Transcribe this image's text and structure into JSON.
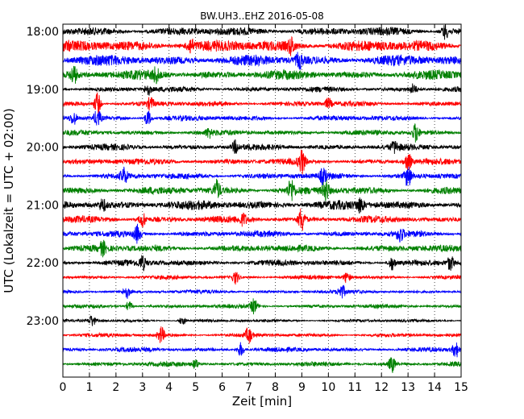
{
  "chart_data": {
    "type": "line",
    "title": "BW.UH3..EHZ 2016-05-08",
    "xlabel": "Zeit  [min]",
    "ylabel": "UTC (Lokalzeit = UTC + 02:00)",
    "xlim": [
      0,
      15
    ],
    "x_ticks": [
      0,
      1,
      2,
      3,
      4,
      5,
      6,
      7,
      8,
      9,
      10,
      11,
      12,
      13,
      14,
      15
    ],
    "x_tick_labels": [
      "0",
      "1",
      "2",
      "3",
      "4",
      "5",
      "6",
      "7",
      "8",
      "9",
      "10",
      "11",
      "12",
      "13",
      "14",
      "15"
    ],
    "y_tick_labels": [
      "18:00",
      "19:00",
      "20:00",
      "21:00",
      "22:00",
      "23:00"
    ],
    "grid": "vertical-dotted",
    "line_colors": [
      "#000000",
      "#ff0000",
      "#0000ff",
      "#008000"
    ],
    "traces": [
      {
        "start": "18:00",
        "color": "#000000",
        "amp": 0.55,
        "events": [
          [
            14.4,
            1.0
          ]
        ]
      },
      {
        "start": "18:15",
        "color": "#ff0000",
        "amp": 0.75,
        "events": [
          [
            4.8,
            1.0
          ],
          [
            8.6,
            1.0
          ]
        ]
      },
      {
        "start": "18:30",
        "color": "#0000ff",
        "amp": 0.7,
        "events": [
          [
            8.9,
            1.0
          ]
        ]
      },
      {
        "start": "18:45",
        "color": "#008000",
        "amp": 0.6,
        "events": [
          [
            0.4,
            1.2
          ],
          [
            3.5,
            0.9
          ]
        ]
      },
      {
        "start": "19:00",
        "color": "#000000",
        "amp": 0.35,
        "events": [
          [
            3.2,
            0.8
          ],
          [
            13.2,
            0.7
          ]
        ]
      },
      {
        "start": "19:15",
        "color": "#ff0000",
        "amp": 0.35,
        "events": [
          [
            1.3,
            1.6
          ],
          [
            3.3,
            0.8
          ],
          [
            10.0,
            0.7
          ]
        ]
      },
      {
        "start": "19:30",
        "color": "#0000ff",
        "amp": 0.35,
        "events": [
          [
            0.4,
            0.9
          ],
          [
            1.3,
            1.2
          ],
          [
            3.2,
            1.1
          ]
        ]
      },
      {
        "start": "19:45",
        "color": "#008000",
        "amp": 0.35,
        "events": [
          [
            13.3,
            1.4
          ],
          [
            5.5,
            0.6
          ]
        ]
      },
      {
        "start": "20:00",
        "color": "#000000",
        "amp": 0.4,
        "events": [
          [
            6.5,
            0.8
          ],
          [
            12.5,
            0.7
          ]
        ]
      },
      {
        "start": "20:15",
        "color": "#ff0000",
        "amp": 0.4,
        "events": [
          [
            9.0,
            1.6
          ],
          [
            13.0,
            1.3
          ]
        ]
      },
      {
        "start": "20:30",
        "color": "#0000ff",
        "amp": 0.4,
        "events": [
          [
            2.3,
            1.1
          ],
          [
            9.8,
            1.0
          ],
          [
            13.0,
            1.5
          ]
        ]
      },
      {
        "start": "20:45",
        "color": "#008000",
        "amp": 0.5,
        "events": [
          [
            5.8,
            1.3
          ],
          [
            8.6,
            1.5
          ],
          [
            9.9,
            1.5
          ]
        ]
      },
      {
        "start": "21:00",
        "color": "#000000",
        "amp": 0.6,
        "events": [
          [
            11.2,
            0.9
          ],
          [
            1.5,
            0.8
          ]
        ]
      },
      {
        "start": "21:15",
        "color": "#ff0000",
        "amp": 0.45,
        "events": [
          [
            3.0,
            1.0
          ],
          [
            9.0,
            1.7
          ],
          [
            6.8,
            0.7
          ]
        ]
      },
      {
        "start": "21:30",
        "color": "#0000ff",
        "amp": 0.4,
        "events": [
          [
            2.8,
            1.2
          ],
          [
            12.7,
            1.0
          ]
        ]
      },
      {
        "start": "21:45",
        "color": "#008000",
        "amp": 0.45,
        "events": [
          [
            1.5,
            0.9
          ]
        ]
      },
      {
        "start": "22:00",
        "color": "#000000",
        "amp": 0.4,
        "events": [
          [
            3.0,
            0.9
          ],
          [
            12.4,
            1.0
          ],
          [
            14.6,
            1.0
          ]
        ]
      },
      {
        "start": "22:15",
        "color": "#ff0000",
        "amp": 0.25,
        "events": [
          [
            6.5,
            0.9
          ],
          [
            10.7,
            0.8
          ]
        ]
      },
      {
        "start": "22:30",
        "color": "#0000ff",
        "amp": 0.25,
        "events": [
          [
            2.4,
            0.9
          ],
          [
            10.5,
            0.9
          ]
        ]
      },
      {
        "start": "22:45",
        "color": "#008000",
        "amp": 0.25,
        "events": [
          [
            7.2,
            1.1
          ],
          [
            2.5,
            0.7
          ]
        ]
      },
      {
        "start": "23:00",
        "color": "#000000",
        "amp": 0.2,
        "events": [
          [
            1.1,
            0.8
          ],
          [
            4.5,
            0.6
          ]
        ]
      },
      {
        "start": "23:15",
        "color": "#ff0000",
        "amp": 0.25,
        "events": [
          [
            3.7,
            1.2
          ],
          [
            7.0,
            1.1
          ]
        ]
      },
      {
        "start": "23:30",
        "color": "#0000ff",
        "amp": 0.3,
        "events": [
          [
            6.7,
            1.0
          ],
          [
            14.8,
            1.1
          ]
        ]
      },
      {
        "start": "23:45",
        "color": "#008000",
        "amp": 0.3,
        "events": [
          [
            12.4,
            1.1
          ],
          [
            5.0,
            0.6
          ]
        ]
      }
    ]
  }
}
